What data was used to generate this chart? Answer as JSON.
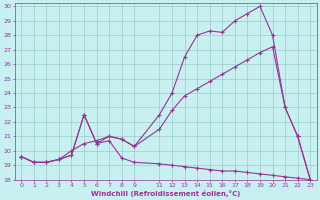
{
  "xlabel": "Windchill (Refroidissement éolien,°C)",
  "bg_color": "#c8f0f0",
  "line_color": "#993399",
  "grid_color": "#99cccc",
  "xlim": [
    -0.5,
    23.5
  ],
  "ylim": [
    18,
    30.2
  ],
  "xticks": [
    0,
    1,
    2,
    3,
    4,
    5,
    6,
    7,
    8,
    9,
    11,
    12,
    13,
    14,
    15,
    16,
    17,
    18,
    19,
    20,
    21,
    22,
    23
  ],
  "yticks": [
    18,
    19,
    20,
    21,
    22,
    23,
    24,
    25,
    26,
    27,
    28,
    29,
    30
  ],
  "line1_x": [
    0,
    1,
    2,
    3,
    4,
    5,
    6,
    7,
    8,
    9,
    11,
    12,
    13,
    14,
    15,
    16,
    17,
    18,
    19,
    20,
    21,
    22,
    23
  ],
  "line1_y": [
    19.6,
    19.2,
    19.2,
    19.4,
    19.7,
    22.5,
    20.5,
    20.7,
    19.5,
    19.2,
    19.1,
    19.0,
    18.9,
    18.8,
    18.7,
    18.6,
    18.6,
    18.5,
    18.4,
    18.3,
    18.2,
    18.1,
    18.0
  ],
  "line2_x": [
    0,
    1,
    2,
    3,
    4,
    5,
    6,
    7,
    8,
    9,
    11,
    12,
    13,
    14,
    15,
    16,
    17,
    18,
    19,
    20,
    21,
    22,
    23
  ],
  "line2_y": [
    19.6,
    19.2,
    19.2,
    19.4,
    19.7,
    22.5,
    20.5,
    21.0,
    20.8,
    20.3,
    22.5,
    24.0,
    26.5,
    28.0,
    28.3,
    28.2,
    29.0,
    29.5,
    30.0,
    28.0,
    23.0,
    21.0,
    18.0
  ],
  "line3_x": [
    0,
    1,
    2,
    3,
    4,
    5,
    6,
    7,
    8,
    9,
    11,
    12,
    13,
    14,
    15,
    16,
    17,
    18,
    19,
    20,
    21,
    22,
    23
  ],
  "line3_y": [
    19.6,
    19.2,
    19.2,
    19.4,
    20.0,
    20.5,
    20.7,
    21.0,
    20.8,
    20.3,
    21.5,
    22.8,
    23.8,
    24.3,
    24.8,
    25.3,
    25.8,
    26.3,
    26.8,
    27.2,
    23.0,
    21.0,
    18.0
  ]
}
